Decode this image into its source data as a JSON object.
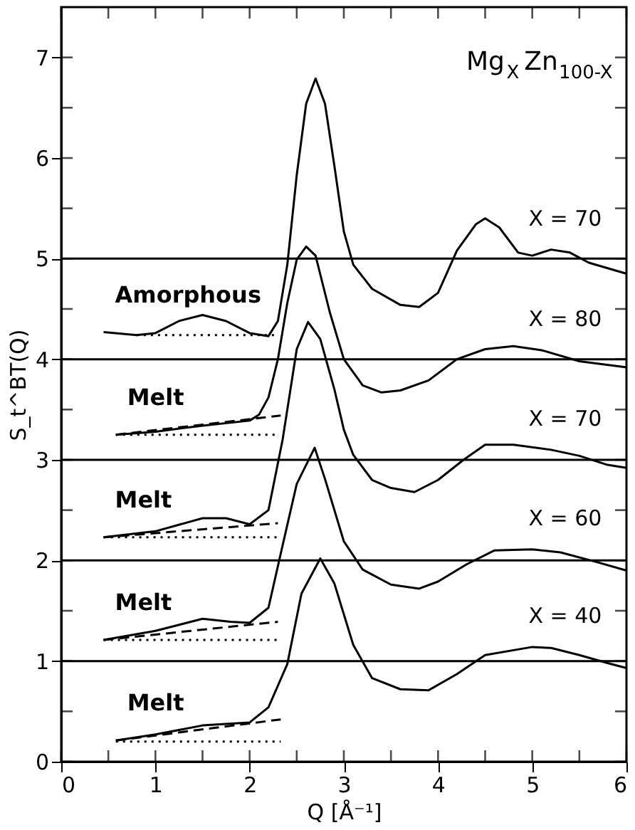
{
  "chart_data": {
    "type": "line",
    "title": "Mg$_{X}$Zn$_{100-X}$",
    "xlabel": "Q [Å⁻¹]",
    "ylabel": "S_t^BT(Q)",
    "xlim": [
      0,
      6
    ],
    "ylim": [
      0,
      7.5
    ],
    "xticks": [
      0,
      {
        "value": 0.5,
        "label": null
      },
      1,
      {
        "value": 1.5,
        "label": null
      },
      2,
      {
        "value": 2.5,
        "label": null
      },
      3,
      {
        "value": 3.5,
        "label": null
      },
      4,
      {
        "value": 4.5,
        "label": null
      },
      5,
      {
        "value": 5.5,
        "label": null
      },
      6
    ],
    "yticks": [
      0,
      {
        "value": 0.5,
        "label": null
      },
      1,
      {
        "value": 1.5,
        "label": null
      },
      2,
      {
        "value": 2.5,
        "label": null
      },
      3,
      {
        "value": 3.5,
        "label": null
      },
      4,
      {
        "value": 4.5,
        "label": null
      },
      5,
      {
        "value": 5.5,
        "label": null
      },
      6,
      {
        "value": 6.5,
        "label": null
      },
      7
    ],
    "grid": false,
    "legend": "right",
    "marker": "none",
    "series": [
      {
        "name": "X = 70",
        "color": "#000000",
        "line_style": "solid",
        "x": [
          0.45,
          0.8,
          1.0,
          1.25,
          1.5,
          1.75,
          2.0,
          2.2,
          2.3,
          2.4,
          2.5,
          2.6,
          2.7,
          2.8,
          2.9,
          3.0,
          3.1,
          3.3,
          3.6,
          3.8,
          4.0,
          4.2,
          4.4,
          4.5,
          4.65,
          4.85,
          5.0,
          5.2,
          5.4,
          5.6,
          6.0
        ],
        "values": [
          4.27,
          4.24,
          4.26,
          4.38,
          4.44,
          4.38,
          4.26,
          4.23,
          4.38,
          4.94,
          5.83,
          6.54,
          6.79,
          6.54,
          5.92,
          5.27,
          4.94,
          4.7,
          4.54,
          4.52,
          4.66,
          5.08,
          5.34,
          5.4,
          5.31,
          5.06,
          5.03,
          5.09,
          5.06,
          4.96,
          4.85
        ]
      },
      {
        "color": "#000000",
        "line_style": "dotted",
        "x": [
          0.8,
          2.3
        ],
        "values": [
          4.24,
          4.24
        ]
      },
      {
        "name": "X = 80",
        "color": "#000000",
        "line_style": "solid",
        "x": [
          0.58,
          1.0,
          1.5,
          2.0,
          2.1,
          2.2,
          2.3,
          2.4,
          2.5,
          2.6,
          2.7,
          2.85,
          3.0,
          3.2,
          3.4,
          3.6,
          3.9,
          4.2,
          4.5,
          4.8,
          5.1,
          5.5,
          6.0
        ],
        "values": [
          3.25,
          3.28,
          3.34,
          3.39,
          3.45,
          3.62,
          4.0,
          4.56,
          4.99,
          5.12,
          5.03,
          4.47,
          4.0,
          3.74,
          3.67,
          3.69,
          3.79,
          4.0,
          4.1,
          4.13,
          4.09,
          3.98,
          3.92
        ]
      },
      {
        "color": "#000000",
        "line_style": "dashed",
        "x": [
          0.58,
          2.33
        ],
        "values": [
          3.25,
          3.44
        ]
      },
      {
        "color": "#000000",
        "line_style": "dotted",
        "x": [
          0.58,
          2.3
        ],
        "values": [
          3.25,
          3.25
        ]
      },
      {
        "name": "X = 70",
        "color": "#000000",
        "line_style": "solid",
        "x": [
          0.45,
          1.0,
          1.5,
          1.75,
          2.0,
          2.2,
          2.35,
          2.5,
          2.62,
          2.75,
          2.9,
          3.0,
          3.1,
          3.3,
          3.5,
          3.75,
          4.0,
          4.27,
          4.5,
          4.8,
          5.2,
          5.5,
          5.8,
          6.0
        ],
        "values": [
          2.23,
          2.29,
          2.42,
          2.42,
          2.36,
          2.5,
          3.2,
          4.1,
          4.37,
          4.2,
          3.7,
          3.3,
          3.05,
          2.8,
          2.72,
          2.68,
          2.8,
          3.0,
          3.15,
          3.15,
          3.1,
          3.04,
          2.95,
          2.92
        ]
      },
      {
        "color": "#000000",
        "line_style": "dashed",
        "x": [
          0.45,
          2.3
        ],
        "values": [
          2.23,
          2.37
        ]
      },
      {
        "color": "#000000",
        "line_style": "dotted",
        "x": [
          0.45,
          2.3
        ],
        "values": [
          2.23,
          2.23
        ]
      },
      {
        "name": "X = 60",
        "color": "#000000",
        "line_style": "solid",
        "x": [
          0.45,
          1.0,
          1.5,
          1.8,
          2.0,
          2.2,
          2.35,
          2.5,
          2.69,
          2.8,
          3.0,
          3.2,
          3.5,
          3.8,
          4.0,
          4.3,
          4.6,
          5.0,
          5.3,
          5.7,
          6.0
        ],
        "values": [
          1.21,
          1.3,
          1.42,
          1.39,
          1.38,
          1.53,
          2.15,
          2.76,
          3.12,
          2.81,
          2.19,
          1.91,
          1.76,
          1.72,
          1.79,
          1.96,
          2.1,
          2.11,
          2.08,
          1.98,
          1.9
        ]
      },
      {
        "color": "#000000",
        "line_style": "dashed",
        "x": [
          0.45,
          2.3
        ],
        "values": [
          1.21,
          1.39
        ]
      },
      {
        "color": "#000000",
        "line_style": "dotted",
        "x": [
          0.45,
          2.3
        ],
        "values": [
          1.21,
          1.21
        ]
      },
      {
        "name": "X = 40",
        "color": "#000000",
        "line_style": "solid",
        "x": [
          0.58,
          1.0,
          1.5,
          2.0,
          2.2,
          2.4,
          2.55,
          2.75,
          2.9,
          3.1,
          3.3,
          3.6,
          3.9,
          4.2,
          4.5,
          5.0,
          5.2,
          5.5,
          5.8,
          6.0
        ],
        "values": [
          0.21,
          0.27,
          0.36,
          0.39,
          0.54,
          0.97,
          1.67,
          2.02,
          1.77,
          1.16,
          0.83,
          0.72,
          0.71,
          0.87,
          1.06,
          1.14,
          1.13,
          1.06,
          0.98,
          0.93
        ]
      },
      {
        "color": "#000000",
        "line_style": "dashed",
        "x": [
          0.58,
          2.33
        ],
        "values": [
          0.21,
          0.42
        ]
      },
      {
        "color": "#000000",
        "line_style": "dotted",
        "x": [
          0.58,
          2.33
        ],
        "values": [
          0.2,
          0.2
        ]
      }
    ],
    "ref_lines": [
      {
        "axis": "y",
        "value": 1,
        "color": "#000000"
      },
      {
        "axis": "y",
        "value": 2,
        "color": "#000000"
      },
      {
        "axis": "y",
        "value": 3,
        "color": "#000000"
      },
      {
        "axis": "y",
        "value": 4,
        "color": "#000000"
      },
      {
        "axis": "y",
        "value": 5,
        "color": "#000000"
      }
    ],
    "annotations": [
      "Amorphous",
      "Melt",
      "Melt",
      "Melt",
      "Melt"
    ]
  }
}
